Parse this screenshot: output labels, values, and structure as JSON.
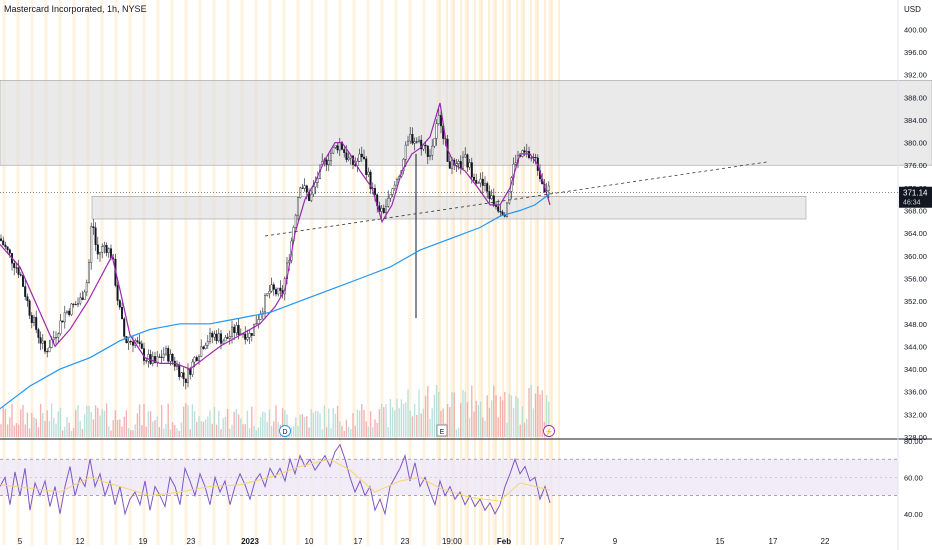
{
  "header": {
    "title": "Mastercard Incorporated, 1h, NYSE"
  },
  "colors": {
    "up": "#26a69a",
    "down": "#131722",
    "ma_fast": "#9c27b0",
    "ma_slow": "#2196f3",
    "zone": "#dcdcdc",
    "rsi_line": "#7e57c2",
    "rsi_ma": "#f5d76e",
    "price_badge": "#131722",
    "grid_highlight": "#fff3e0"
  },
  "chart_data": [
    {
      "type": "candlestick",
      "title": "Mastercard Incorporated, 1h, NYSE",
      "currency": "USD",
      "ylim": [
        328,
        402
      ],
      "y_ticks": [
        328,
        332,
        336,
        340,
        344,
        348,
        352,
        356,
        360,
        364,
        368,
        372,
        376,
        380,
        384,
        388,
        392,
        396,
        400
      ],
      "y_tick_labels": [
        "328.00",
        "332.00",
        "336.00",
        "340.00",
        "344.00",
        "348.00",
        "352.00",
        "356.00",
        "360.00",
        "364.00",
        "368.00",
        "372.00",
        "376.00",
        "380.00",
        "384.00",
        "388.00",
        "392.00",
        "396.00",
        "400.00"
      ],
      "x_labels": [
        "5",
        "12",
        "19",
        "23",
        "2023",
        "10",
        "17",
        "23",
        "19:00",
        "Feb",
        "7",
        "9",
        "15",
        "17",
        "22"
      ],
      "last_price": "371.14",
      "countdown": "46:34",
      "price_path": [
        [
          0,
          363
        ],
        [
          10,
          360
        ],
        [
          20,
          357
        ],
        [
          30,
          350
        ],
        [
          45,
          343
        ],
        [
          55,
          346
        ],
        [
          65,
          350
        ],
        [
          80,
          352
        ],
        [
          88,
          356
        ],
        [
          92,
          367
        ],
        [
          97,
          360
        ],
        [
          105,
          362
        ],
        [
          112,
          360
        ],
        [
          118,
          352
        ],
        [
          125,
          345
        ],
        [
          135,
          345
        ],
        [
          145,
          342
        ],
        [
          155,
          341
        ],
        [
          165,
          343
        ],
        [
          175,
          341
        ],
        [
          185,
          338
        ],
        [
          195,
          342
        ],
        [
          205,
          345
        ],
        [
          215,
          346
        ],
        [
          225,
          345
        ],
        [
          235,
          347
        ],
        [
          250,
          346
        ],
        [
          260,
          350
        ],
        [
          270,
          354
        ],
        [
          282,
          353
        ],
        [
          290,
          361
        ],
        [
          300,
          373
        ],
        [
          310,
          370
        ],
        [
          320,
          375
        ],
        [
          330,
          378
        ],
        [
          340,
          380
        ],
        [
          348,
          377
        ],
        [
          355,
          376
        ],
        [
          362,
          378
        ],
        [
          370,
          373
        ],
        [
          380,
          367
        ],
        [
          390,
          370
        ],
        [
          400,
          375
        ],
        [
          410,
          381
        ],
        [
          420,
          380
        ],
        [
          430,
          378
        ],
        [
          440,
          385
        ],
        [
          448,
          377
        ],
        [
          455,
          375
        ],
        [
          465,
          377
        ],
        [
          475,
          374
        ],
        [
          485,
          372
        ],
        [
          495,
          369
        ],
        [
          505,
          368
        ],
        [
          515,
          377
        ],
        [
          525,
          378
        ],
        [
          535,
          377
        ],
        [
          545,
          372
        ],
        [
          550,
          372
        ]
      ],
      "series": [
        {
          "name": "",
          "role": "fast moving average",
          "x": [
            0,
            20,
            40,
            55,
            70,
            88,
            100,
            112,
            120,
            130,
            145,
            160,
            175,
            190,
            205,
            220,
            240,
            260,
            275,
            285,
            295,
            305,
            315,
            325,
            335,
            342,
            350,
            360,
            372,
            382,
            392,
            402,
            412,
            420,
            430,
            440,
            447,
            455,
            465,
            478,
            490,
            500,
            510,
            520,
            530,
            538,
            545,
            550
          ],
          "values": [
            362,
            358,
            350,
            344,
            347,
            352,
            356,
            360,
            354,
            346,
            342,
            341,
            341,
            340,
            342,
            344,
            346,
            348,
            351,
            354,
            364,
            370,
            373,
            377,
            380,
            380,
            378,
            375,
            372,
            366,
            369,
            375,
            378,
            379,
            381,
            387,
            379,
            376,
            375,
            372,
            369,
            369,
            372,
            378,
            378,
            376,
            372,
            369
          ]
        },
        {
          "name": "",
          "role": "slow moving average",
          "x": [
            0,
            30,
            60,
            90,
            120,
            150,
            180,
            210,
            240,
            270,
            300,
            330,
            360,
            390,
            420,
            450,
            480,
            500,
            520,
            535,
            550
          ],
          "values": [
            333,
            337,
            340,
            342,
            345,
            347,
            348,
            348,
            349,
            350,
            352,
            354,
            356,
            358,
            361,
            363,
            365,
            367,
            368,
            369,
            371
          ]
        }
      ],
      "zones": [
        {
          "label": "",
          "from": 376,
          "to": 391,
          "x_start": 0,
          "x_end": 932
        },
        {
          "label": "",
          "from": 366.5,
          "to": 370.5,
          "x_start": 92,
          "x_end": 806
        }
      ],
      "trendline": {
        "x": [
          265,
          768
        ],
        "y": [
          363.5,
          376.6
        ],
        "style": "dashed"
      },
      "event_markers": [
        {
          "x": 285,
          "label": "D"
        },
        {
          "x": 442,
          "label": "E"
        },
        {
          "x": 549,
          "label": "⚡"
        }
      ]
    },
    {
      "type": "line",
      "title": "",
      "ylim": [
        30,
        80
      ],
      "y_ticks": [
        40,
        60,
        80
      ],
      "y_tick_labels": [
        "40.00",
        "60.00",
        "80.00"
      ],
      "band": [
        50,
        70
      ],
      "rsi_path": [
        [
          0,
          55
        ],
        [
          5,
          60
        ],
        [
          10,
          45
        ],
        [
          15,
          63
        ],
        [
          20,
          50
        ],
        [
          25,
          65
        ],
        [
          30,
          42
        ],
        [
          35,
          57
        ],
        [
          40,
          50
        ],
        [
          45,
          58
        ],
        [
          50,
          44
        ],
        [
          55,
          55
        ],
        [
          60,
          40
        ],
        [
          65,
          55
        ],
        [
          70,
          66
        ],
        [
          75,
          50
        ],
        [
          80,
          60
        ],
        [
          85,
          55
        ],
        [
          90,
          70
        ],
        [
          95,
          55
        ],
        [
          100,
          62
        ],
        [
          105,
          50
        ],
        [
          110,
          58
        ],
        [
          115,
          45
        ],
        [
          120,
          55
        ],
        [
          125,
          40
        ],
        [
          130,
          48
        ],
        [
          135,
          52
        ],
        [
          140,
          45
        ],
        [
          145,
          58
        ],
        [
          150,
          42
        ],
        [
          155,
          55
        ],
        [
          160,
          50
        ],
        [
          165,
          44
        ],
        [
          170,
          60
        ],
        [
          175,
          55
        ],
        [
          180,
          45
        ],
        [
          185,
          65
        ],
        [
          190,
          58
        ],
        [
          195,
          50
        ],
        [
          200,
          62
        ],
        [
          205,
          55
        ],
        [
          210,
          45
        ],
        [
          215,
          60
        ],
        [
          220,
          52
        ],
        [
          225,
          58
        ],
        [
          230,
          45
        ],
        [
          235,
          55
        ],
        [
          240,
          62
        ],
        [
          245,
          56
        ],
        [
          250,
          48
        ],
        [
          255,
          58
        ],
        [
          260,
          62
        ],
        [
          265,
          55
        ],
        [
          270,
          65
        ],
        [
          275,
          60
        ],
        [
          280,
          65
        ],
        [
          285,
          58
        ],
        [
          290,
          70
        ],
        [
          295,
          62
        ],
        [
          300,
          72
        ],
        [
          305,
          66
        ],
        [
          310,
          70
        ],
        [
          315,
          64
        ],
        [
          320,
          68
        ],
        [
          325,
          72
        ],
        [
          330,
          66
        ],
        [
          335,
          74
        ],
        [
          340,
          78
        ],
        [
          345,
          70
        ],
        [
          350,
          60
        ],
        [
          355,
          52
        ],
        [
          360,
          58
        ],
        [
          365,
          50
        ],
        [
          370,
          55
        ],
        [
          375,
          42
        ],
        [
          380,
          48
        ],
        [
          385,
          40
        ],
        [
          390,
          55
        ],
        [
          395,
          60
        ],
        [
          400,
          65
        ],
        [
          405,
          72
        ],
        [
          410,
          58
        ],
        [
          415,
          68
        ],
        [
          420,
          55
        ],
        [
          425,
          60
        ],
        [
          430,
          52
        ],
        [
          435,
          45
        ],
        [
          440,
          58
        ],
        [
          445,
          50
        ],
        [
          450,
          55
        ],
        [
          455,
          48
        ],
        [
          460,
          52
        ],
        [
          465,
          45
        ],
        [
          470,
          50
        ],
        [
          475,
          44
        ],
        [
          480,
          48
        ],
        [
          485,
          42
        ],
        [
          490,
          46
        ],
        [
          495,
          40
        ],
        [
          500,
          45
        ],
        [
          505,
          55
        ],
        [
          510,
          62
        ],
        [
          515,
          70
        ],
        [
          520,
          62
        ],
        [
          525,
          66
        ],
        [
          530,
          58
        ],
        [
          535,
          60
        ],
        [
          540,
          48
        ],
        [
          545,
          55
        ],
        [
          550,
          46
        ]
      ],
      "ma_path": [
        [
          0,
          56
        ],
        [
          30,
          54
        ],
        [
          60,
          52
        ],
        [
          90,
          60
        ],
        [
          120,
          55
        ],
        [
          150,
          50
        ],
        [
          180,
          52
        ],
        [
          210,
          55
        ],
        [
          240,
          56
        ],
        [
          270,
          60
        ],
        [
          300,
          66
        ],
        [
          330,
          70
        ],
        [
          350,
          64
        ],
        [
          375,
          52
        ],
        [
          400,
          58
        ],
        [
          420,
          60
        ],
        [
          440,
          54
        ],
        [
          470,
          49
        ],
        [
          500,
          47
        ],
        [
          520,
          57
        ],
        [
          550,
          53
        ]
      ]
    }
  ]
}
